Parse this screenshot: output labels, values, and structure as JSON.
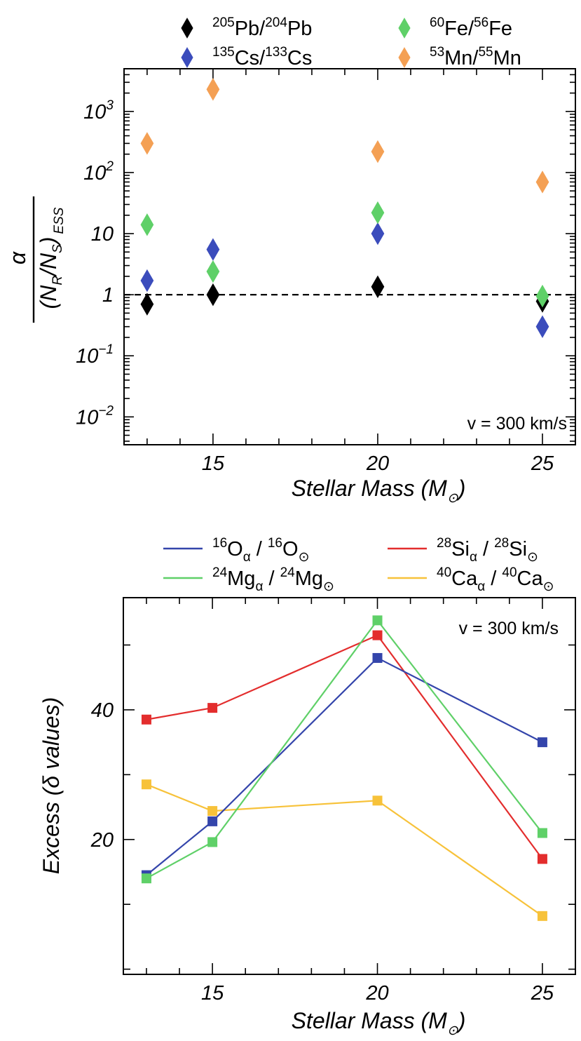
{
  "chart_data": [
    {
      "type": "scatter",
      "yscale": "log",
      "xlabel_main": "Stellar Mass (M",
      "xlabel_sub": "⊙",
      "xlabel_close": ")",
      "ylabel": {
        "numerator": "α",
        "open": "(N",
        "r_sub": "R",
        "slash": "/N",
        "s_sub": "S",
        "close": ")",
        "ess_sub": "ESS"
      },
      "xlim": [
        12.3,
        26.0
      ],
      "ylim": [
        0.0035,
        5000
      ],
      "xticks": [
        15,
        20,
        25
      ],
      "xtick_labels": [
        "15",
        "20",
        "25"
      ],
      "yticks": [
        {
          "value": 1000,
          "base": "10",
          "exp": "3"
        },
        {
          "value": 100,
          "base": "10",
          "exp": "2"
        },
        {
          "value": 10,
          "base": "10",
          "exp": ""
        },
        {
          "value": 1,
          "base": "1",
          "exp": ""
        },
        {
          "value": 0.1,
          "base": "10",
          "exp": "−1"
        },
        {
          "value": 0.01,
          "base": "10",
          "exp": "−2"
        }
      ],
      "reference_line": {
        "y": 1,
        "style": "dashed"
      },
      "annotation": "v = 300 km/s",
      "series": [
        {
          "name": "Pb",
          "color": "#000000",
          "legend": {
            "sup1": "205",
            "t1": "Pb/",
            "sup2": "204",
            "t2": "Pb"
          },
          "x": [
            13,
            15,
            20,
            25
          ],
          "y": [
            0.7,
            1.0,
            1.35,
            0.78
          ]
        },
        {
          "name": "Cs",
          "color": "#3b4cbc",
          "legend": {
            "sup1": "135",
            "t1": "Cs/",
            "sup2": "133",
            "t2": "Cs"
          },
          "x": [
            13,
            15,
            20,
            25
          ],
          "y": [
            1.7,
            5.5,
            10,
            0.3
          ]
        },
        {
          "name": "Fe",
          "color": "#5fd068",
          "legend": {
            "sup1": "60",
            "t1": "Fe/",
            "sup2": "56",
            "t2": "Fe"
          },
          "x": [
            13,
            15,
            20,
            25
          ],
          "y": [
            14,
            2.4,
            22,
            0.95
          ]
        },
        {
          "name": "Mn",
          "color": "#f4a054",
          "legend": {
            "sup1": "53",
            "t1": "Mn/",
            "sup2": "55",
            "t2": "Mn"
          },
          "x": [
            13,
            15,
            20,
            25
          ],
          "y": [
            300,
            2300,
            220,
            70
          ]
        }
      ]
    },
    {
      "type": "line",
      "xlabel_main": "Stellar Mass (M",
      "xlabel_sub": "⊙",
      "xlabel_close": ")",
      "ylabel": {
        "pre": "Excess (",
        "delta": "δ",
        "post": " values)"
      },
      "xlim": [
        12.3,
        26.0
      ],
      "ylim": [
        -0.8,
        57.3
      ],
      "xticks": [
        15,
        20,
        25
      ],
      "xtick_labels": [
        "15",
        "20",
        "25"
      ],
      "yticks": [
        20,
        40
      ],
      "ytick_labels": [
        "20",
        "40"
      ],
      "annotation": "v = 300 km/s",
      "series": [
        {
          "name": "O",
          "color": "#3445ab",
          "legend": {
            "sup1": "16",
            "t1": "O",
            "sub1": "α",
            "mid": " / ",
            "sup2": "16",
            "t2": "O",
            "sub2": "⊙"
          },
          "x": [
            13,
            15,
            20,
            25
          ],
          "y": [
            14.5,
            22.8,
            48.0,
            35.0
          ]
        },
        {
          "name": "Si",
          "color": "#e32d2d",
          "legend": {
            "sup1": "28",
            "t1": "Si",
            "sub1": "α",
            "mid": " / ",
            "sup2": "28",
            "t2": "Si",
            "sub2": "⊙"
          },
          "x": [
            13,
            15,
            20,
            25
          ],
          "y": [
            38.5,
            40.3,
            51.5,
            17.0
          ]
        },
        {
          "name": "Mg",
          "color": "#5fd068",
          "legend": {
            "sup1": "24",
            "t1": "Mg",
            "sub1": "α",
            "mid": " / ",
            "sup2": "24",
            "t2": "Mg",
            "sub2": "⊙"
          },
          "x": [
            13,
            15,
            20,
            25
          ],
          "y": [
            14.0,
            19.6,
            53.8,
            21.0
          ]
        },
        {
          "name": "Ca",
          "color": "#f7c23a",
          "legend": {
            "sup1": "40",
            "t1": "Ca",
            "sub1": "α",
            "mid": " / ",
            "sup2": "40",
            "t2": "Ca",
            "sub2": "⊙"
          },
          "x": [
            13,
            15,
            20,
            25
          ],
          "y": [
            28.5,
            24.4,
            26.0,
            8.2
          ]
        }
      ]
    }
  ]
}
